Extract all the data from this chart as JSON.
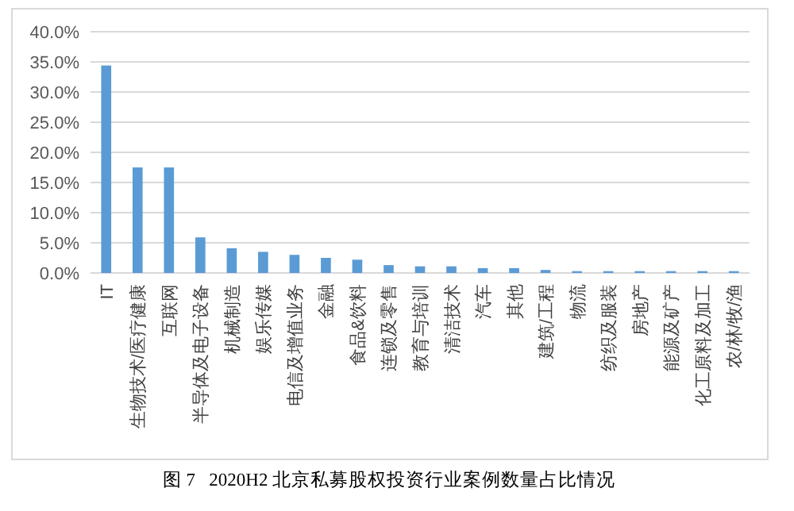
{
  "chart_data": {
    "type": "bar",
    "title": "图 7   2020H2 北京私募股权投资行业案例数量占比情况",
    "categories": [
      "IT",
      "生物技术/医疗健康",
      "互联网",
      "半导体及电子设备",
      "机械制造",
      "娱乐传媒",
      "电信及增值业务",
      "金融",
      "食品&饮料",
      "连锁及零售",
      "教育与培训",
      "清洁技术",
      "汽车",
      "其他",
      "建筑/工程",
      "物流",
      "纺织及服装",
      "房地产",
      "能源及矿产",
      "化工原料及加工",
      "农/林/牧/渔"
    ],
    "values": [
      34.4,
      17.5,
      17.5,
      5.9,
      4.1,
      3.5,
      3.0,
      2.5,
      2.2,
      1.3,
      1.1,
      1.1,
      0.8,
      0.8,
      0.5,
      0.3,
      0.3,
      0.3,
      0.3,
      0.3,
      0.3
    ],
    "color": "#5b9bd5",
    "ylim": [
      0,
      40
    ],
    "yticks": [
      {
        "value": 0,
        "label": "0.0%"
      },
      {
        "value": 5,
        "label": "5.0%"
      },
      {
        "value": 10,
        "label": "10.0%"
      },
      {
        "value": 15,
        "label": "15.0%"
      },
      {
        "value": 20,
        "label": "20.0%"
      },
      {
        "value": 25,
        "label": "25.0%"
      },
      {
        "value": 30,
        "label": "30.0%"
      },
      {
        "value": 35,
        "label": "35.0%"
      },
      {
        "value": 40,
        "label": "40.0%"
      }
    ],
    "grid": "y"
  }
}
